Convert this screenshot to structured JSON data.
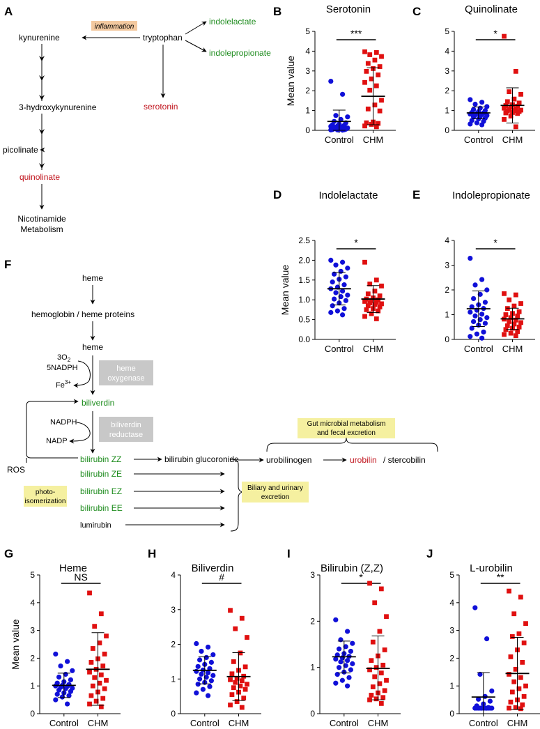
{
  "panel_letters": {
    "a": "A",
    "b": "B",
    "c": "C",
    "d": "D",
    "e": "E",
    "f": "F",
    "g": "G",
    "h": "H",
    "i": "I",
    "j": "J"
  },
  "pathway_a": {
    "inflammation": "inflammation",
    "tryptophan": "tryptophan",
    "kynurenine": "kynurenine",
    "indolelactate": "indolelactate",
    "indolepropionate": "indolepropionate",
    "serotonin": "serotonin",
    "hydroxykynurenine": "3-hydroxykynurenine",
    "picolinate": "picolinate",
    "quinolinate": "quinolinate",
    "nicotinamide_1": "Nicotinamide",
    "nicotinamide_2": "Metabolism"
  },
  "pathway_f": {
    "heme_top": "heme",
    "hemoglobin": "hemoglobin / heme proteins",
    "heme_mid": "heme",
    "o2_base": "3O",
    "o2_sub": "2",
    "nadph_5": "5NADPH",
    "fe_base": "Fe",
    "fe_sup": "3+",
    "heme_oxygenase_1": "heme",
    "heme_oxygenase_2": "oxygenase",
    "biliverdin": "biliverdin",
    "nadph": "NADPH",
    "nadp": "NADP",
    "reductase_1": "biliverdin",
    "reductase_2": "reductase",
    "bilirubin_zz": "bilirubin ZZ",
    "glucoronide": "bilirubin glucoronide",
    "ros": "ROS",
    "bilirubin_ze": "bilirubin ZE",
    "bilirubin_ez": "bilirubin EZ",
    "bilirubin_ee": "bilirubin EE",
    "lumirubin": "lumirubin",
    "photo_1": "photo-",
    "photo_2": "isomerization",
    "gut_1": "Gut microbial metabolism",
    "gut_2": "and fecal excretion",
    "urobilinogen": "urobilinogen",
    "urobilin": "urobilin",
    "stercobilin": "/ stercobilin",
    "biliary_1": "Biliary and urinary",
    "biliary_2": "excretion"
  },
  "colors": {
    "control": "#1010d8",
    "chm": "#e01010",
    "green": "#1e8c1e",
    "red": "#c0121b",
    "enzyme_box": "#c8c8c8",
    "note_box": "#f5f0a0",
    "inflammation_box": "#f3c9a0"
  },
  "chart_data": [
    {
      "id": "B",
      "type": "scatter",
      "title": "Serotonin",
      "ylabel": "Mean value",
      "categories": [
        "Control",
        "CHM"
      ],
      "ylim": [
        0,
        5
      ],
      "yticks": [
        "0",
        "1",
        "2",
        "3",
        "4",
        "5"
      ],
      "significance": "***",
      "groups": [
        {
          "name": "Control",
          "mean": 0.45,
          "sd_low": 0.0,
          "sd_high": 1.02,
          "values": [
            2.48,
            1.82,
            0.75,
            0.68,
            0.55,
            0.45,
            0.38,
            0.32,
            0.28,
            0.25,
            0.22,
            0.2,
            0.18,
            0.15,
            0.12,
            0.1,
            0.08,
            0.06,
            0.05,
            0.04,
            0.03,
            0.02,
            0.02,
            0.01
          ]
        },
        {
          "name": "CHM",
          "mean": 1.72,
          "sd_low": 0.28,
          "sd_high": 3.16,
          "values": [
            3.97,
            3.93,
            3.82,
            3.73,
            3.55,
            3.38,
            3.22,
            3.12,
            2.98,
            2.8,
            2.6,
            2.42,
            2.25,
            2.03,
            1.52,
            1.28,
            1.08,
            0.98,
            0.42,
            0.38,
            0.35,
            0.3,
            0.22,
            0.18
          ]
        }
      ]
    },
    {
      "id": "C",
      "type": "scatter",
      "title": "Quinolinate",
      "ylabel": "",
      "categories": [
        "Control",
        "CHM"
      ],
      "ylim": [
        0,
        5
      ],
      "yticks": [
        "0",
        "1",
        "2",
        "3",
        "4",
        "5"
      ],
      "significance": "*",
      "groups": [
        {
          "name": "Control",
          "mean": 0.88,
          "sd_low": 0.58,
          "sd_high": 1.18,
          "values": [
            1.55,
            1.42,
            1.32,
            1.2,
            1.12,
            1.05,
            1.0,
            0.95,
            0.9,
            0.88,
            0.85,
            0.82,
            0.8,
            0.78,
            0.75,
            0.7,
            0.68,
            0.62,
            0.58,
            0.5,
            0.45,
            0.38,
            0.32,
            0.28
          ]
        },
        {
          "name": "CHM",
          "mean": 1.26,
          "sd_low": 0.37,
          "sd_high": 2.15,
          "values": [
            4.75,
            2.98,
            1.95,
            1.82,
            1.58,
            1.45,
            1.38,
            1.3,
            1.25,
            1.22,
            1.18,
            1.12,
            1.08,
            1.05,
            1.02,
            1.0,
            0.98,
            0.95,
            0.9,
            0.88,
            0.85,
            0.72,
            0.55,
            0.18
          ]
        }
      ]
    },
    {
      "id": "D",
      "type": "scatter",
      "title": "Indolelactate",
      "ylabel": "Mean value",
      "categories": [
        "Control",
        "CHM"
      ],
      "ylim": [
        0,
        2.5
      ],
      "yticks": [
        "0.0",
        "0.5",
        "1.0",
        "1.5",
        "2.0",
        "2.5"
      ],
      "significance": "*",
      "groups": [
        {
          "name": "Control",
          "mean": 1.28,
          "sd_low": 0.87,
          "sd_high": 1.69,
          "values": [
            2.0,
            1.95,
            1.88,
            1.8,
            1.72,
            1.65,
            1.58,
            1.52,
            1.45,
            1.38,
            1.32,
            1.28,
            1.22,
            1.18,
            1.12,
            1.08,
            1.02,
            0.98,
            0.92,
            0.85,
            0.78,
            0.72,
            0.68,
            0.62
          ]
        },
        {
          "name": "CHM",
          "mean": 1.02,
          "sd_low": 0.68,
          "sd_high": 1.36,
          "values": [
            1.95,
            1.5,
            1.4,
            1.35,
            1.22,
            1.15,
            1.1,
            1.05,
            1.02,
            1.0,
            0.98,
            0.96,
            0.94,
            0.92,
            0.9,
            0.88,
            0.85,
            0.82,
            0.78,
            0.75,
            0.72,
            0.65,
            0.58,
            0.52
          ]
        }
      ]
    },
    {
      "id": "E",
      "type": "scatter",
      "title": "Indolepropionate",
      "ylabel": "",
      "categories": [
        "Control",
        "CHM"
      ],
      "ylim": [
        0,
        4
      ],
      "yticks": [
        "0",
        "1",
        "2",
        "3",
        "4"
      ],
      "significance": "*",
      "groups": [
        {
          "name": "Control",
          "mean": 1.24,
          "sd_low": 0.52,
          "sd_high": 1.96,
          "values": [
            3.28,
            2.42,
            2.2,
            2.0,
            1.82,
            1.65,
            1.5,
            1.4,
            1.32,
            1.25,
            1.18,
            1.1,
            1.02,
            0.95,
            0.88,
            0.8,
            0.72,
            0.65,
            0.58,
            0.45,
            0.3,
            0.22,
            0.12,
            0.05
          ]
        },
        {
          "name": "CHM",
          "mean": 0.83,
          "sd_low": 0.4,
          "sd_high": 1.26,
          "values": [
            1.85,
            1.8,
            1.6,
            1.45,
            1.35,
            1.25,
            1.12,
            1.05,
            1.0,
            0.95,
            0.88,
            0.82,
            0.78,
            0.72,
            0.68,
            0.62,
            0.55,
            0.5,
            0.45,
            0.4,
            0.32,
            0.25,
            0.2,
            0.15
          ]
        }
      ]
    },
    {
      "id": "G",
      "type": "scatter",
      "title": "Heme",
      "ylabel": "Mean value",
      "categories": [
        "Control",
        "CHM"
      ],
      "ylim": [
        0,
        5
      ],
      "yticks": [
        "0",
        "1",
        "2",
        "3",
        "4",
        "5"
      ],
      "significance": "NS",
      "groups": [
        {
          "name": "Control",
          "mean": 1.02,
          "sd_low": 0.58,
          "sd_high": 1.46,
          "values": [
            2.15,
            1.88,
            1.72,
            1.55,
            1.42,
            1.32,
            1.22,
            1.15,
            1.1,
            1.05,
            1.02,
            1.0,
            0.98,
            0.95,
            0.92,
            0.9,
            0.85,
            0.8,
            0.75,
            0.7,
            0.65,
            0.6,
            0.5,
            0.35
          ]
        },
        {
          "name": "CHM",
          "mean": 1.6,
          "sd_low": 0.3,
          "sd_high": 2.92,
          "values": [
            4.35,
            3.6,
            3.15,
            2.8,
            2.55,
            2.35,
            2.15,
            1.98,
            1.85,
            1.72,
            1.6,
            1.5,
            1.4,
            1.3,
            1.2,
            1.1,
            1.0,
            0.9,
            0.78,
            0.65,
            0.55,
            0.45,
            0.35,
            0.25
          ]
        }
      ]
    },
    {
      "id": "H",
      "type": "scatter",
      "title": "Biliverdin",
      "ylabel": "",
      "categories": [
        "Control",
        "CHM"
      ],
      "ylim": [
        0,
        4
      ],
      "yticks": [
        "0",
        "1",
        "2",
        "3",
        "4"
      ],
      "significance": "#",
      "groups": [
        {
          "name": "Control",
          "mean": 1.25,
          "sd_low": 0.86,
          "sd_high": 1.64,
          "values": [
            2.02,
            1.92,
            1.8,
            1.7,
            1.62,
            1.55,
            1.48,
            1.42,
            1.36,
            1.3,
            1.26,
            1.22,
            1.18,
            1.14,
            1.1,
            1.05,
            1.0,
            0.95,
            0.9,
            0.85,
            0.78,
            0.7,
            0.6,
            0.52
          ]
        },
        {
          "name": "CHM",
          "mean": 1.07,
          "sd_low": 0.38,
          "sd_high": 1.76,
          "values": [
            2.98,
            2.75,
            2.45,
            2.2,
            1.75,
            1.5,
            1.35,
            1.25,
            1.15,
            1.08,
            1.02,
            0.98,
            0.95,
            0.9,
            0.85,
            0.8,
            0.75,
            0.7,
            0.62,
            0.55,
            0.45,
            0.35,
            0.25,
            0.18
          ]
        }
      ]
    },
    {
      "id": "I",
      "type": "scatter",
      "title": "Bilirubin (Z,Z)",
      "ylabel": "",
      "categories": [
        "Control",
        "CHM"
      ],
      "ylim": [
        0,
        3
      ],
      "yticks": [
        "0",
        "1",
        "2",
        "3"
      ],
      "significance": "*",
      "groups": [
        {
          "name": "Control",
          "mean": 1.23,
          "sd_low": 0.88,
          "sd_high": 1.57,
          "values": [
            2.03,
            1.78,
            1.6,
            1.52,
            1.45,
            1.4,
            1.35,
            1.3,
            1.27,
            1.24,
            1.21,
            1.18,
            1.15,
            1.12,
            1.08,
            1.04,
            1.0,
            0.95,
            0.9,
            0.85,
            0.78,
            0.72,
            0.66,
            0.6
          ]
        },
        {
          "name": "CHM",
          "mean": 0.98,
          "sd_low": 0.3,
          "sd_high": 1.68,
          "values": [
            2.82,
            2.7,
            2.4,
            2.1,
            1.78,
            1.55,
            1.38,
            1.25,
            1.15,
            1.05,
            1.0,
            0.95,
            0.88,
            0.8,
            0.72,
            0.65,
            0.58,
            0.5,
            0.45,
            0.4,
            0.35,
            0.32,
            0.3,
            0.22
          ]
        }
      ]
    },
    {
      "id": "J",
      "type": "scatter",
      "title": "L-urobilin",
      "ylabel": "",
      "categories": [
        "Control",
        "CHM"
      ],
      "ylim": [
        0,
        5
      ],
      "yticks": [
        "0",
        "1",
        "2",
        "3",
        "4",
        "5"
      ],
      "significance": "**",
      "groups": [
        {
          "name": "Control",
          "mean": 0.6,
          "sd_low": 0.0,
          "sd_high": 1.48,
          "values": [
            3.82,
            2.7,
            1.42,
            0.82,
            0.62,
            0.52,
            0.45,
            0.35,
            0.28,
            0.22,
            0.2,
            0.2,
            0.2,
            0.2,
            0.2,
            0.2,
            0.2,
            0.2,
            0.2,
            0.2,
            0.2,
            0.2,
            0.2,
            0.2
          ]
        },
        {
          "name": "CHM",
          "mean": 1.45,
          "sd_low": 0.15,
          "sd_high": 2.75,
          "values": [
            4.42,
            4.2,
            3.6,
            3.25,
            2.88,
            2.78,
            2.55,
            2.3,
            2.05,
            1.85,
            1.6,
            1.42,
            1.3,
            1.15,
            1.0,
            0.9,
            0.78,
            0.62,
            0.5,
            0.42,
            0.32,
            0.22,
            0.2,
            0.18
          ]
        }
      ]
    }
  ]
}
